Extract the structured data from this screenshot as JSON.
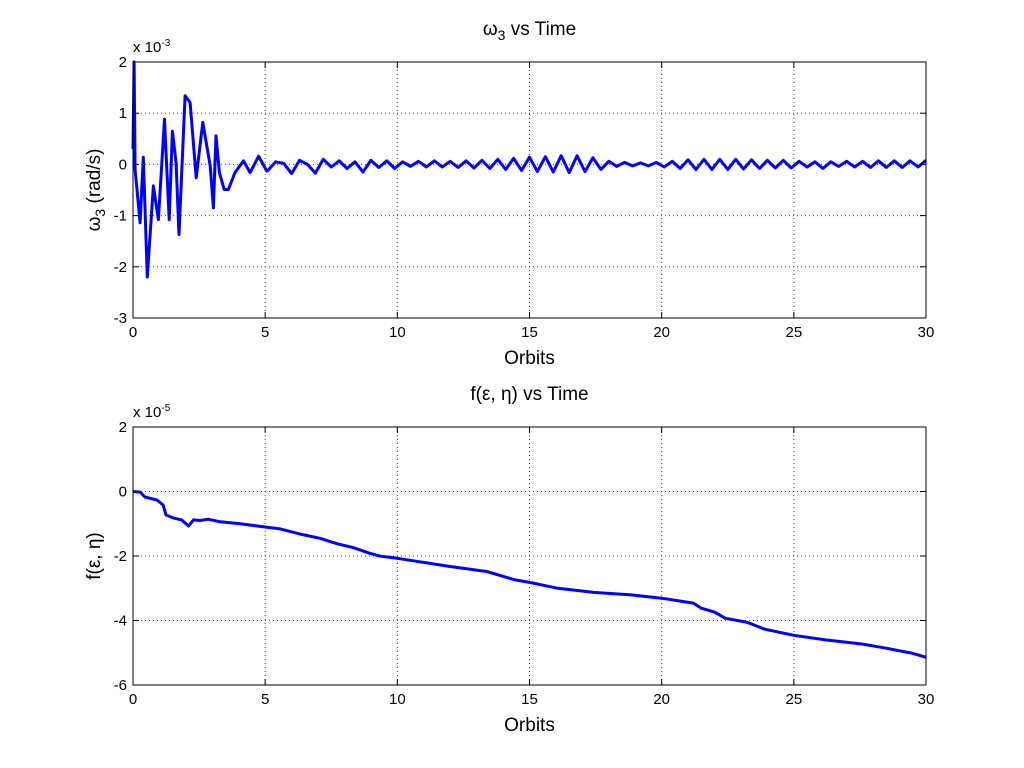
{
  "colors": {
    "line": "#0000ff",
    "axes": "#000000",
    "background": "#ffffff"
  },
  "chart_data": [
    {
      "type": "line",
      "title": {
        "symbol": "ω",
        "sub": "3",
        "rest": " vs Time"
      },
      "xlabel": "Orbits",
      "ylabel": {
        "symbol": "ω",
        "sub": "3",
        "rest": " (rad/s)"
      },
      "exponent": {
        "base": "x 10",
        "power": "-3"
      },
      "xlim": [
        0,
        30
      ],
      "ylim": [
        -3,
        2
      ],
      "xticks": [
        "0",
        "5",
        "10",
        "15",
        "20",
        "25",
        "30"
      ],
      "yticks": [
        "-3",
        "-2",
        "-1",
        "0",
        "1",
        "2"
      ],
      "grid": true,
      "series": [
        {
          "x": [
            0,
            0.04,
            0.08,
            0.27,
            0.39,
            0.54,
            0.77,
            0.96,
            1.19,
            1.37,
            1.49,
            1.63,
            1.74,
            1.97,
            2.16,
            2.39,
            2.64,
            2.92,
            3.04,
            3.14,
            3.27,
            3.45,
            3.61,
            3.86,
            4.18,
            4.43,
            4.75,
            5.06,
            5.1,
            5.4,
            5.7,
            6.0,
            6.3,
            6.6,
            6.9,
            7.2,
            7.5,
            7.8,
            8.1,
            8.4,
            8.7,
            9.0,
            9.3,
            9.6,
            9.9,
            10.2,
            10.5,
            10.8,
            11.1,
            11.4,
            11.7,
            12.0,
            12.3,
            12.6,
            12.9,
            13.2,
            13.5,
            13.8,
            14.1,
            14.4,
            14.7,
            15.0,
            15.3,
            15.6,
            15.9,
            16.2,
            16.5,
            16.8,
            17.1,
            17.4,
            17.7,
            18.0,
            18.3,
            18.6,
            18.9,
            19.2,
            19.5,
            19.8,
            20.1,
            20.4,
            20.7,
            21.0,
            21.3,
            21.6,
            21.9,
            22.2,
            22.5,
            22.8,
            23.1,
            23.4,
            23.7,
            24.0,
            24.3,
            24.6,
            24.9,
            25.2,
            25.5,
            25.8,
            26.1,
            26.4,
            26.7,
            27.0,
            27.3,
            27.6,
            27.9,
            28.2,
            28.5,
            28.8,
            29.1,
            29.4,
            29.7,
            30.0
          ],
          "y": [
            0.3,
            2.0,
            -0.1,
            -1.14,
            0.14,
            -2.2,
            -0.42,
            -1.08,
            0.88,
            -1.08,
            0.65,
            0.03,
            -1.37,
            1.34,
            1.21,
            -0.26,
            0.82,
            -0.03,
            -0.85,
            0.56,
            -0.16,
            -0.49,
            -0.49,
            -0.16,
            0.07,
            -0.16,
            0.16,
            -0.13,
            -0.12,
            0.05,
            0.02,
            -0.18,
            0.08,
            0.0,
            -0.17,
            0.1,
            -0.05,
            0.07,
            -0.08,
            0.05,
            -0.15,
            0.08,
            -0.06,
            0.07,
            -0.08,
            0.05,
            -0.04,
            0.06,
            -0.05,
            0.07,
            -0.05,
            0.06,
            -0.06,
            0.07,
            -0.07,
            0.08,
            -0.08,
            0.1,
            -0.1,
            0.12,
            -0.12,
            0.14,
            -0.14,
            0.15,
            -0.15,
            0.17,
            -0.16,
            0.17,
            -0.14,
            0.13,
            -0.1,
            0.06,
            -0.04,
            0.04,
            -0.03,
            0.03,
            -0.03,
            0.04,
            -0.05,
            0.06,
            -0.08,
            0.09,
            -0.1,
            0.1,
            -0.1,
            0.1,
            -0.1,
            0.1,
            -0.09,
            0.09,
            -0.08,
            0.08,
            -0.07,
            0.08,
            -0.07,
            0.06,
            -0.05,
            0.05,
            -0.08,
            0.05,
            -0.04,
            0.06,
            -0.05,
            0.06,
            -0.06,
            0.07,
            -0.06,
            0.07,
            -0.06,
            0.07,
            -0.05,
            0.08
          ]
        }
      ]
    },
    {
      "type": "line",
      "title": {
        "symbol": "f(ε, η)",
        "sub": "",
        "rest": " vs Time"
      },
      "xlabel": "Orbits",
      "ylabel": {
        "symbol": "f(ε, η)",
        "sub": "",
        "rest": ""
      },
      "exponent": {
        "base": "x 10",
        "power": "-5"
      },
      "xlim": [
        0,
        30
      ],
      "ylim": [
        -6,
        2
      ],
      "xticks": [
        "0",
        "5",
        "10",
        "15",
        "20",
        "25",
        "30"
      ],
      "yticks": [
        "-6",
        "-4",
        "-2",
        "0",
        "2"
      ],
      "grid": true,
      "series": [
        {
          "x": [
            0,
            0.27,
            0.45,
            0.9,
            1.14,
            1.25,
            1.52,
            1.84,
            2.1,
            2.29,
            2.54,
            2.84,
            3.3,
            4.05,
            4.92,
            5.57,
            6.33,
            7.08,
            7.71,
            8.33,
            8.9,
            9.32,
            10,
            12.03,
            13.38,
            14.46,
            15,
            16.08,
            17.43,
            18.78,
            20,
            20.8,
            21.2,
            21.5,
            22.0,
            22.4,
            23.24,
            23.9,
            25,
            26.2,
            27.57,
            28.5,
            29.46,
            30
          ],
          "y": [
            0,
            -0.02,
            -0.17,
            -0.26,
            -0.42,
            -0.73,
            -0.82,
            -0.88,
            -1.07,
            -0.88,
            -0.9,
            -0.86,
            -0.94,
            -1.0,
            -1.09,
            -1.16,
            -1.32,
            -1.45,
            -1.62,
            -1.74,
            -1.9,
            -2.0,
            -2.07,
            -2.33,
            -2.48,
            -2.74,
            -2.82,
            -3.0,
            -3.13,
            -3.2,
            -3.31,
            -3.41,
            -3.46,
            -3.62,
            -3.74,
            -3.93,
            -4.06,
            -4.27,
            -4.46,
            -4.6,
            -4.73,
            -4.86,
            -5.01,
            -5.14
          ]
        }
      ]
    }
  ]
}
